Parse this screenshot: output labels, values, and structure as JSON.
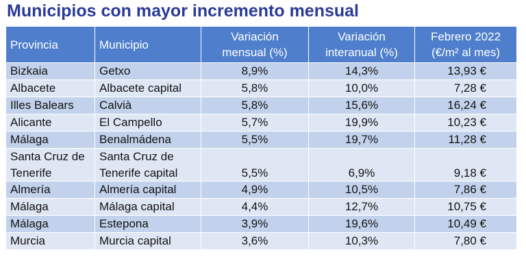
{
  "title": "Municipios con mayor incremento mensual",
  "table": {
    "headers": {
      "provincia": "Provincia",
      "municipio": "Municipio",
      "var_mensual": [
        "Variación",
        "mensual (%)"
      ],
      "var_interanual": [
        "Variación",
        "interanual (%)"
      ],
      "febrero": [
        "Febrero 2022",
        "(€/m² al mes)"
      ]
    },
    "rows": [
      {
        "provincia": "Bizkaia",
        "municipio": "Getxo",
        "mensual": "8,9%",
        "interanual": "14,3%",
        "precio": "13,93 €"
      },
      {
        "provincia": "Albacete",
        "municipio": "Albacete capital",
        "mensual": "5,8%",
        "interanual": "10,0%",
        "precio": "7,28 €"
      },
      {
        "provincia": "Illes Balears",
        "municipio": "Calvià",
        "mensual": "5,8%",
        "interanual": "15,6%",
        "precio": "16,24 €"
      },
      {
        "provincia": "Alicante",
        "municipio": "El Campello",
        "mensual": "5,7%",
        "interanual": "19,9%",
        "precio": "10,23 €"
      },
      {
        "provincia": "Málaga",
        "municipio": "Benalmádena",
        "mensual": "5,5%",
        "interanual": "19,7%",
        "precio": "11,28 €"
      },
      {
        "provincia": "Santa Cruz de Tenerife",
        "municipio": "Santa Cruz de Tenerife capital",
        "mensual": "5,5%",
        "interanual": "6,9%",
        "precio": "9,18 €"
      },
      {
        "provincia": "Almería",
        "municipio": "Almería capital",
        "mensual": "4,9%",
        "interanual": "10,5%",
        "precio": "7,86 €"
      },
      {
        "provincia": "Málaga",
        "municipio": "Málaga capital",
        "mensual": "4,4%",
        "interanual": "12,7%",
        "precio": "10,75 €"
      },
      {
        "provincia": "Málaga",
        "municipio": "Estepona",
        "mensual": "3,9%",
        "interanual": "19,6%",
        "precio": "10,49 €"
      },
      {
        "provincia": "Murcia",
        "municipio": "Murcia capital",
        "mensual": "3,6%",
        "interanual": "10,3%",
        "precio": "7,80 €"
      }
    ]
  },
  "colors": {
    "title": "#2a3a96",
    "header_bg": "#4f7fcc",
    "row_dark": "#c2d2ec",
    "row_light": "#e0e7f4"
  }
}
